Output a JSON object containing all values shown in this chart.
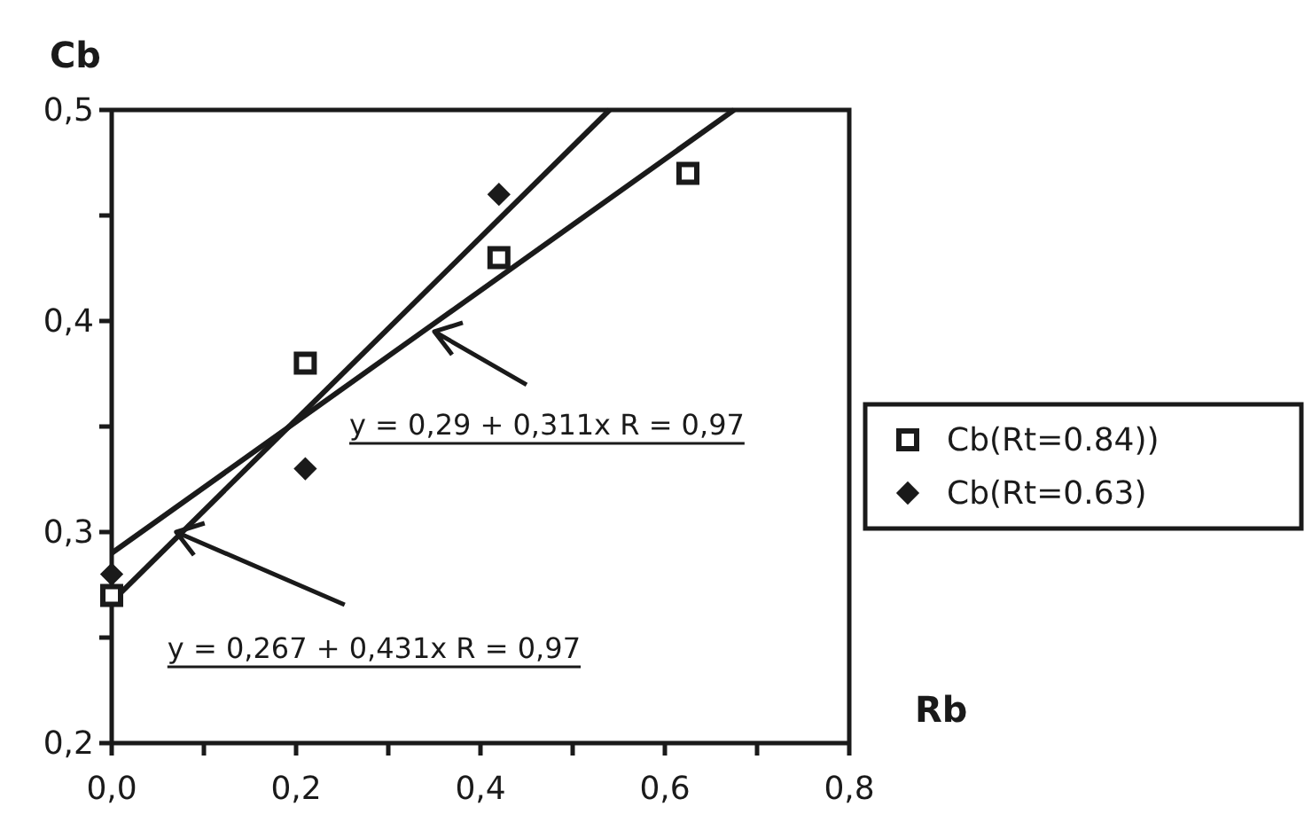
{
  "chart_data": {
    "type": "scatter",
    "xlabel": "Rb",
    "ylabel": "Cb",
    "xlim": [
      0,
      0.8
    ],
    "ylim": [
      0.2,
      0.5
    ],
    "xticks": [
      {
        "value": 0,
        "label": "0,0"
      },
      {
        "value": 0.1,
        "label": null
      },
      {
        "value": 0.2,
        "label": "0,2"
      },
      {
        "value": 0.3,
        "label": null
      },
      {
        "value": 0.4,
        "label": "0,4"
      },
      {
        "value": 0.5,
        "label": null
      },
      {
        "value": 0.6,
        "label": "0,6"
      },
      {
        "value": 0.7,
        "label": null
      },
      {
        "value": 0.8,
        "label": "0,8"
      }
    ],
    "yticks": [
      {
        "value": 0.2,
        "label": "0,2"
      },
      {
        "value": 0.25,
        "label": null
      },
      {
        "value": 0.3,
        "label": "0,3"
      },
      {
        "value": 0.35,
        "label": null
      },
      {
        "value": 0.4,
        "label": "0,4"
      },
      {
        "value": 0.45,
        "label": null
      },
      {
        "value": 0.5,
        "label": "0,5"
      }
    ],
    "grid": false,
    "legend": "right",
    "series": [
      {
        "type": "line",
        "color": "#1a1a1a",
        "x": [
          0,
          0.54
        ],
        "values": [
          0.267,
          0.5
        ],
        "marker": "none"
      },
      {
        "type": "line",
        "color": "#1a1a1a",
        "x": [
          0,
          0.675
        ],
        "values": [
          0.29,
          0.5
        ],
        "marker": "none"
      },
      {
        "name": "Cb(Rt=0.84))",
        "color": "#1a1a1a",
        "marker": "square",
        "x": [
          0,
          0.21,
          0.42,
          0.625
        ],
        "values": [
          0.27,
          0.38,
          0.43,
          0.47
        ]
      },
      {
        "name": "Cb(Rt=0.63)",
        "color": "#1a1a1a",
        "marker": "diamond",
        "x": [
          0,
          0.21,
          0.42
        ],
        "values": [
          0.28,
          0.33,
          0.46
        ]
      }
    ],
    "annotations": [
      {
        "text": "y = 0,29 + 0,311x  R = 0,97",
        "x": 0.35,
        "y": 0.395
      },
      {
        "text": "y = 0,267 + 0,431x  R = 0,97",
        "x": 0.07,
        "y": 0.3
      }
    ]
  }
}
